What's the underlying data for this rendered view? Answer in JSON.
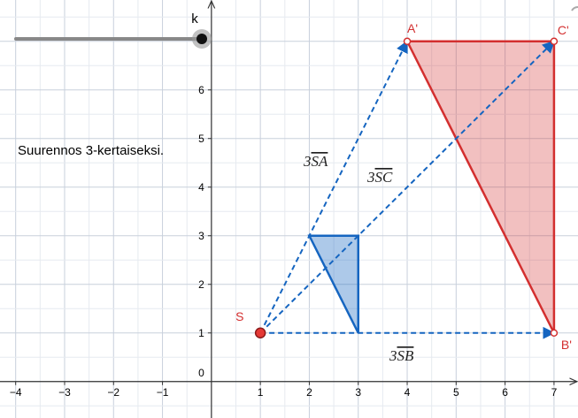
{
  "slider": {
    "label": "k"
  },
  "caption": "Suurennos 3-kertaiseksi.",
  "axes": {
    "xlim": [
      -4.32,
      7.49
    ],
    "ylim": [
      -0.75,
      7.85
    ],
    "xticks": [
      {
        "value": -4,
        "label": "−4"
      },
      {
        "value": -3,
        "label": "−3"
      },
      {
        "value": -2,
        "label": "−2"
      },
      {
        "value": -1,
        "label": "−1"
      },
      0,
      1,
      2,
      3,
      4,
      5,
      6,
      7
    ],
    "yticks": [
      1,
      2,
      3,
      4,
      5,
      6
    ]
  },
  "triangle": {
    "x": [
      2,
      3,
      3
    ],
    "y": [
      3,
      1,
      3
    ]
  },
  "points": [
    {
      "label": "S",
      "x": 1,
      "y": 1
    },
    {
      "label": "A'",
      "x": 4,
      "y": 7
    },
    {
      "label": "B'",
      "x": 7,
      "y": 1
    },
    {
      "label": "C'",
      "x": 7,
      "y": 7
    }
  ],
  "vectors": [
    {
      "coefficient": "3",
      "vector": "SA"
    },
    {
      "coefficient": "3",
      "vector": "SC"
    },
    {
      "coefficient": "3",
      "vector": "SB"
    }
  ]
}
